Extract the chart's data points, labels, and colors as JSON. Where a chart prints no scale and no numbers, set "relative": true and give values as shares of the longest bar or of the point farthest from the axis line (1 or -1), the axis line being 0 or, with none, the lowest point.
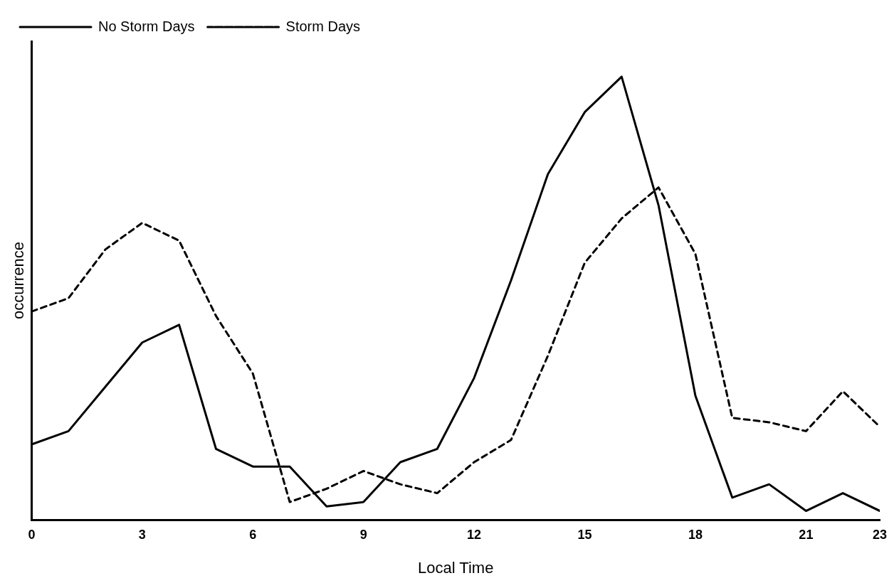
{
  "chart_data": {
    "type": "line",
    "xlabel": "Local Time",
    "ylabel": "occurrence",
    "relative": true,
    "x": [
      0,
      1,
      2,
      3,
      4,
      5,
      6,
      7,
      8,
      9,
      10,
      11,
      12,
      13,
      14,
      15,
      16,
      17,
      18,
      19,
      20,
      21,
      22,
      23
    ],
    "xlim": [
      0,
      23
    ],
    "xticks": [
      0,
      3,
      6,
      9,
      12,
      15,
      18,
      21,
      23
    ],
    "grid": false,
    "legend": "top left",
    "marker": "none",
    "series": [
      {
        "name": "No Storm Days",
        "color": "#000000",
        "line_style": "solid",
        "values": [
          0.17,
          0.2,
          0.3,
          0.4,
          0.44,
          0.16,
          0.12,
          0.12,
          0.03,
          0.04,
          0.13,
          0.16,
          0.32,
          0.54,
          0.78,
          0.92,
          1,
          0.71,
          0.28,
          0.05,
          0.08,
          0.02,
          0.06,
          0.02
        ]
      },
      {
        "name": "Storm Days",
        "color": "#000000",
        "line_style": "dashed",
        "values": [
          0.47,
          0.5,
          0.61,
          0.67,
          0.63,
          0.46,
          0.33,
          0.04,
          0.07,
          0.11,
          0.08,
          0.06,
          0.13,
          0.18,
          0.37,
          0.58,
          0.68,
          0.75,
          0.6,
          0.23,
          0.22,
          0.2,
          0.29,
          0.21
        ]
      }
    ]
  }
}
